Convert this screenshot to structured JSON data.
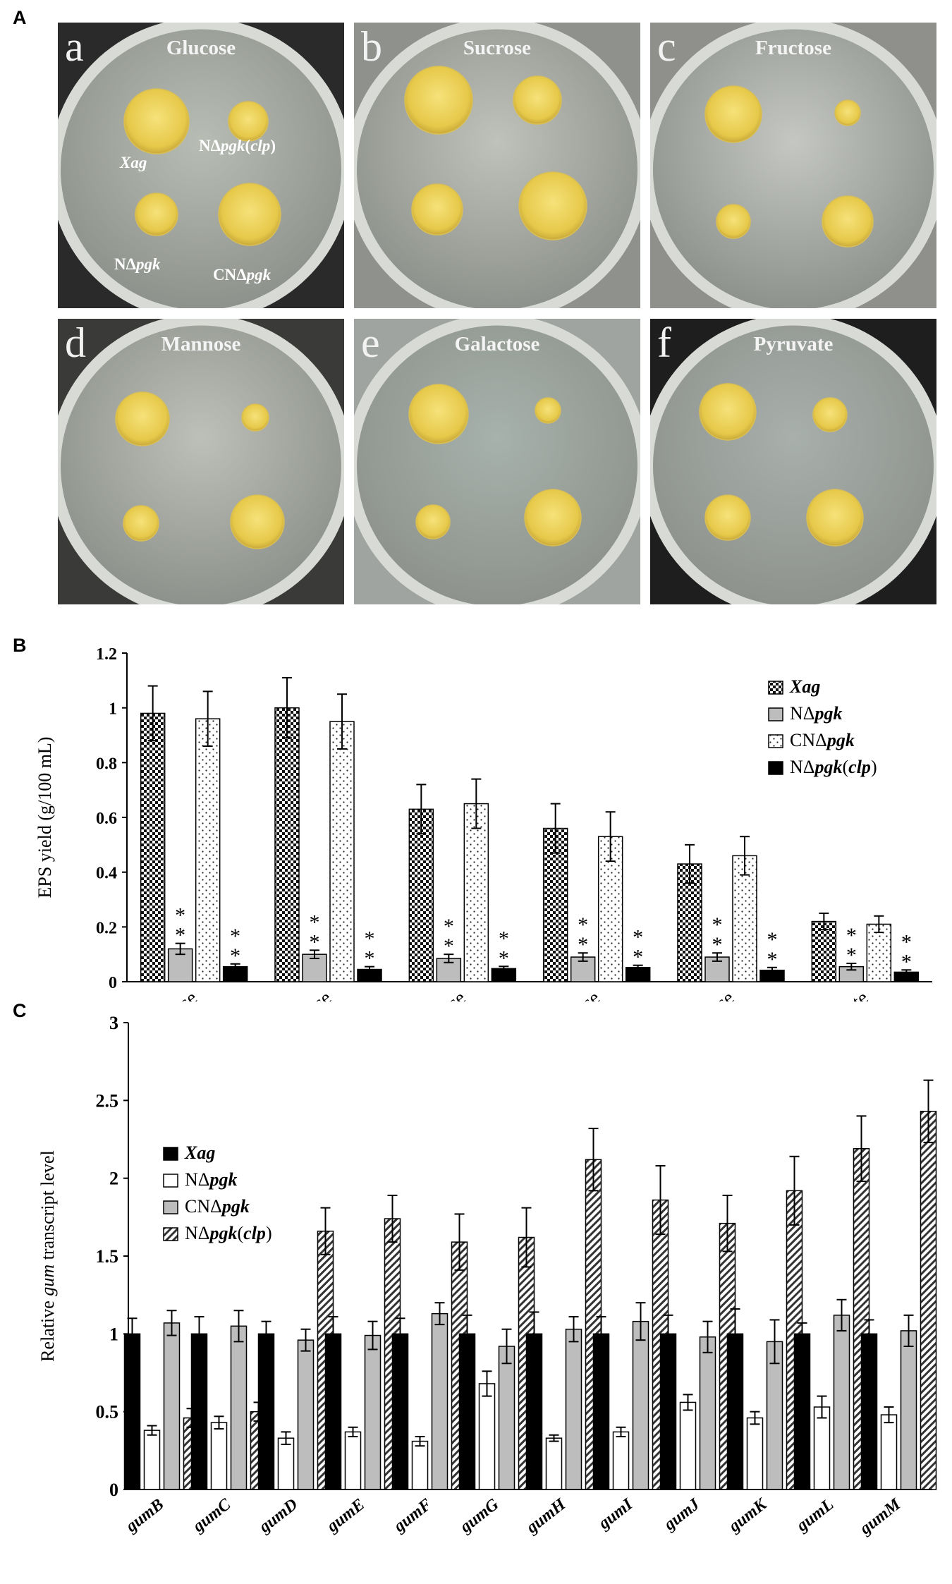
{
  "panels": {
    "A": "A",
    "B": "B",
    "C": "C"
  },
  "plates": [
    {
      "letter": "a",
      "medium": "Glucose"
    },
    {
      "letter": "b",
      "medium": "Sucrose"
    },
    {
      "letter": "c",
      "medium": "Fructose"
    },
    {
      "letter": "d",
      "medium": "Mannose"
    },
    {
      "letter": "e",
      "medium": "Galactose"
    },
    {
      "letter": "f",
      "medium": "Pyruvate"
    }
  ],
  "plate_labels": {
    "xag": "Xag",
    "npgk_clp_prefix": "NΔ",
    "npgk_clp_italic": "pgk",
    "npgk_clp_paren": "(",
    "npgk_clp_gene": "clp",
    "npgk_clp_close": ")",
    "npgk_prefix": "NΔ",
    "npgk_italic": "pgk",
    "cnpgk_prefix": "CNΔ",
    "cnpgk_italic": "pgk"
  },
  "chart_data": [
    {
      "type": "bar",
      "panel": "B",
      "ylabel": "EPS yield (g/100 mL)",
      "ylim": [
        0,
        1.2
      ],
      "yticks": [
        "0",
        "0.2",
        "0.4",
        "0.6",
        "0.8",
        "1",
        "1.2"
      ],
      "categories": [
        "Glucose",
        "Sucrose",
        "Fructose",
        "Mannose",
        "Galactose",
        "Pyruvate"
      ],
      "significance": "**",
      "legend_position": "top-right",
      "series": [
        {
          "name": "Xag",
          "values": [
            0.98,
            1.0,
            0.63,
            0.56,
            0.43,
            0.22
          ],
          "errors": [
            0.1,
            0.11,
            0.09,
            0.09,
            0.07,
            0.03
          ],
          "pattern": "checker"
        },
        {
          "name": "NΔpgk",
          "values": [
            0.12,
            0.1,
            0.085,
            0.09,
            0.09,
            0.055
          ],
          "errors": [
            0.02,
            0.015,
            0.015,
            0.015,
            0.015,
            0.012
          ],
          "pattern": "gray"
        },
        {
          "name": "CNΔpgk",
          "values": [
            0.96,
            0.95,
            0.65,
            0.53,
            0.46,
            0.21
          ],
          "errors": [
            0.1,
            0.1,
            0.09,
            0.09,
            0.07,
            0.03
          ],
          "pattern": "dots"
        },
        {
          "name": "NΔpgk(clp)",
          "values": [
            0.055,
            0.045,
            0.048,
            0.052,
            0.042,
            0.035
          ],
          "errors": [
            0.01,
            0.01,
            0.008,
            0.008,
            0.01,
            0.008
          ],
          "pattern": "black"
        }
      ],
      "legend": [
        {
          "prefix": "",
          "italic": "Xag",
          "suffix": ""
        },
        {
          "prefix": "NΔ",
          "italic": "pgk",
          "suffix": ""
        },
        {
          "prefix": "CNΔ",
          "italic": "pgk",
          "suffix": ""
        },
        {
          "prefix": "NΔ",
          "italic": "pgk",
          "suffix": "(clp)"
        }
      ]
    },
    {
      "type": "bar",
      "panel": "C",
      "ylabel_prefix": "Relative ",
      "ylabel_italic": "gum",
      "ylabel_suffix": " transcript level",
      "ylim": [
        0,
        3
      ],
      "yticks": [
        "0",
        "0.5",
        "1",
        "1.5",
        "2",
        "2.5",
        "3"
      ],
      "categories": [
        "gumB",
        "gumC",
        "gumD",
        "gumE",
        "gumF",
        "gumG",
        "gumH",
        "gumI",
        "gumJ",
        "gumK",
        "gumL",
        "gumM"
      ],
      "legend_position": "top-left",
      "series": [
        {
          "name": "Xag",
          "values": [
            1.0,
            1.0,
            1.0,
            1.0,
            1.0,
            1.0,
            1.0,
            1.0,
            1.0,
            1.0,
            1.0,
            1.0
          ],
          "errors": [
            0.1,
            0.11,
            0.08,
            0.11,
            0.1,
            0.12,
            0.14,
            0.11,
            0.12,
            0.16,
            0.07,
            0.09
          ],
          "pattern": "black"
        },
        {
          "name": "NΔpgk",
          "values": [
            0.38,
            0.43,
            0.33,
            0.37,
            0.31,
            0.68,
            0.33,
            0.37,
            0.56,
            0.46,
            0.53,
            0.48
          ],
          "errors": [
            0.03,
            0.04,
            0.04,
            0.03,
            0.03,
            0.08,
            0.02,
            0.03,
            0.05,
            0.04,
            0.07,
            0.05
          ],
          "pattern": "white"
        },
        {
          "name": "CNΔpgk",
          "values": [
            1.07,
            1.05,
            0.96,
            0.99,
            1.13,
            0.92,
            1.03,
            1.08,
            0.98,
            0.95,
            1.12,
            1.02
          ],
          "errors": [
            0.08,
            0.1,
            0.07,
            0.09,
            0.07,
            0.11,
            0.08,
            0.12,
            0.1,
            0.14,
            0.1,
            0.1
          ],
          "pattern": "gray"
        },
        {
          "name": "NΔpgk(clp)",
          "values": [
            0.46,
            0.5,
            1.66,
            1.74,
            1.59,
            1.62,
            2.12,
            1.86,
            1.71,
            1.92,
            2.19,
            2.43
          ],
          "errors": [
            0.06,
            0.06,
            0.15,
            0.15,
            0.18,
            0.19,
            0.2,
            0.22,
            0.18,
            0.22,
            0.21,
            0.2
          ],
          "pattern": "hatch"
        }
      ],
      "legend": [
        {
          "prefix": "",
          "italic": "Xag",
          "suffix": ""
        },
        {
          "prefix": "NΔ",
          "italic": "pgk",
          "suffix": ""
        },
        {
          "prefix": "CNΔ",
          "italic": "pgk",
          "suffix": ""
        },
        {
          "prefix": "NΔ",
          "italic": "pgk",
          "suffix": "(clp)"
        }
      ]
    }
  ]
}
